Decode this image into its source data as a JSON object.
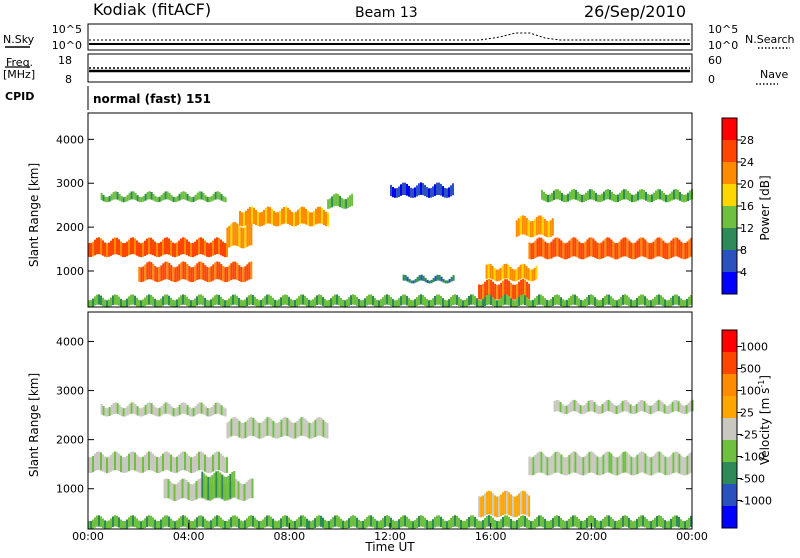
{
  "header": {
    "station": "Kodiak (fitACF)",
    "beam": "Beam 13",
    "date": "26/Sep/2010"
  },
  "nsky_panel": {
    "left_label": "N.Sky",
    "right_label": "N.Search",
    "left_ticks": [
      "10^5",
      "10^0"
    ],
    "right_ticks": [
      "10^5",
      "10^0"
    ]
  },
  "freq_panel": {
    "left_label_line1": "Freq.",
    "left_label_line2": "[MHz]",
    "right_label": "Nave",
    "left_ticks": [
      "18",
      "8"
    ],
    "right_ticks": [
      "60",
      "0"
    ]
  },
  "cpid_panel": {
    "label": "CPID",
    "mode": "normal (fast) 151"
  },
  "chart_data": [
    {
      "type": "heatmap",
      "parameter": "power",
      "ylabel": "Slant Range [km]",
      "ylim": [
        180,
        4600
      ],
      "yticks": [
        "1000",
        "2000",
        "3000",
        "4000"
      ],
      "xlim_hours": [
        0,
        24
      ],
      "colorbar_label": "Power [dB]",
      "colorbar_ticks": [
        "28",
        "24",
        "20",
        "16",
        "12",
        "8",
        "4"
      ],
      "colors": [
        "#0000ff",
        "#2a52be",
        "#2e8b57",
        "#6fbf40",
        "#ffd700",
        "#ff8c00",
        "#ff4500",
        "#ff0000"
      ],
      "regions": [
        {
          "t0": 0.0,
          "t1": 5.5,
          "r0": 1350,
          "r1": 1700,
          "level": 6
        },
        {
          "t0": 5.5,
          "t1": 6.5,
          "r0": 1550,
          "r1": 2050,
          "level": 5
        },
        {
          "t0": 6.0,
          "t1": 9.5,
          "r0": 2050,
          "r1": 2400,
          "level": 5
        },
        {
          "t0": 2.0,
          "t1": 6.5,
          "r0": 780,
          "r1": 1150,
          "level": 6
        },
        {
          "t0": 0.5,
          "t1": 5.5,
          "r0": 2600,
          "r1": 2750,
          "level": 3
        },
        {
          "t0": 9.5,
          "t1": 10.5,
          "r0": 2450,
          "r1": 2700,
          "level": 3
        },
        {
          "t0": 12.0,
          "t1": 14.5,
          "r0": 2700,
          "r1": 2950,
          "level": 1
        },
        {
          "t0": 12.5,
          "t1": 14.5,
          "r0": 750,
          "r1": 850,
          "level": 2
        },
        {
          "t0": 15.5,
          "t1": 17.5,
          "r0": 380,
          "r1": 750,
          "level": 6
        },
        {
          "t0": 15.8,
          "t1": 17.8,
          "r0": 800,
          "r1": 1100,
          "level": 5
        },
        {
          "t0": 17.5,
          "t1": 24.0,
          "r0": 1300,
          "r1": 1700,
          "level": 6
        },
        {
          "t0": 17.0,
          "t1": 18.5,
          "r0": 1800,
          "r1": 2200,
          "level": 5
        },
        {
          "t0": 18.0,
          "t1": 24.0,
          "r0": 2600,
          "r1": 2800,
          "level": 3
        },
        {
          "t0": 0.0,
          "t1": 24.0,
          "r0": 200,
          "r1": 400,
          "level": 3
        }
      ]
    },
    {
      "type": "heatmap",
      "parameter": "velocity",
      "ylabel": "Slant Range [km]",
      "ylim": [
        180,
        4600
      ],
      "yticks": [
        "1000",
        "2000",
        "3000",
        "4000"
      ],
      "xlim_hours": [
        0,
        24
      ],
      "xticks": [
        "00:00",
        "04:00",
        "08:00",
        "12:00",
        "16:00",
        "20:00",
        "00:00"
      ],
      "xlabel": "Time UT",
      "colorbar_label": "Velocity [m s",
      "colorbar_label_sup": "-1",
      "colorbar_label_end": "]",
      "colorbar_ticks": [
        "1000",
        "500",
        "100",
        "25",
        "-25",
        "-100",
        "-500",
        "-1000"
      ],
      "colors": [
        "#0000ff",
        "#2a52be",
        "#2e8b57",
        "#6fbf40",
        "#c8c8c0",
        "#ffa500",
        "#ff8c00",
        "#ff4500",
        "#ff0000"
      ],
      "regions": [
        {
          "t0": 0.0,
          "t1": 5.5,
          "r0": 1350,
          "r1": 1700,
          "level": 4
        },
        {
          "t0": 5.5,
          "t1": 9.5,
          "r0": 2050,
          "r1": 2400,
          "level": 4
        },
        {
          "t0": 3.0,
          "t1": 6.5,
          "r0": 780,
          "r1": 1150,
          "level": 4
        },
        {
          "t0": 4.5,
          "t1": 5.8,
          "r0": 800,
          "r1": 1300,
          "level": 3
        },
        {
          "t0": 0.5,
          "t1": 5.5,
          "r0": 2500,
          "r1": 2700,
          "level": 4
        },
        {
          "t0": 15.5,
          "t1": 17.5,
          "r0": 450,
          "r1": 900,
          "level": 5
        },
        {
          "t0": 17.5,
          "t1": 24.0,
          "r0": 1300,
          "r1": 1700,
          "level": 4
        },
        {
          "t0": 18.5,
          "t1": 24.0,
          "r0": 2550,
          "r1": 2750,
          "level": 4
        },
        {
          "t0": 0.0,
          "t1": 24.0,
          "r0": 200,
          "r1": 400,
          "level": 3
        }
      ]
    }
  ]
}
